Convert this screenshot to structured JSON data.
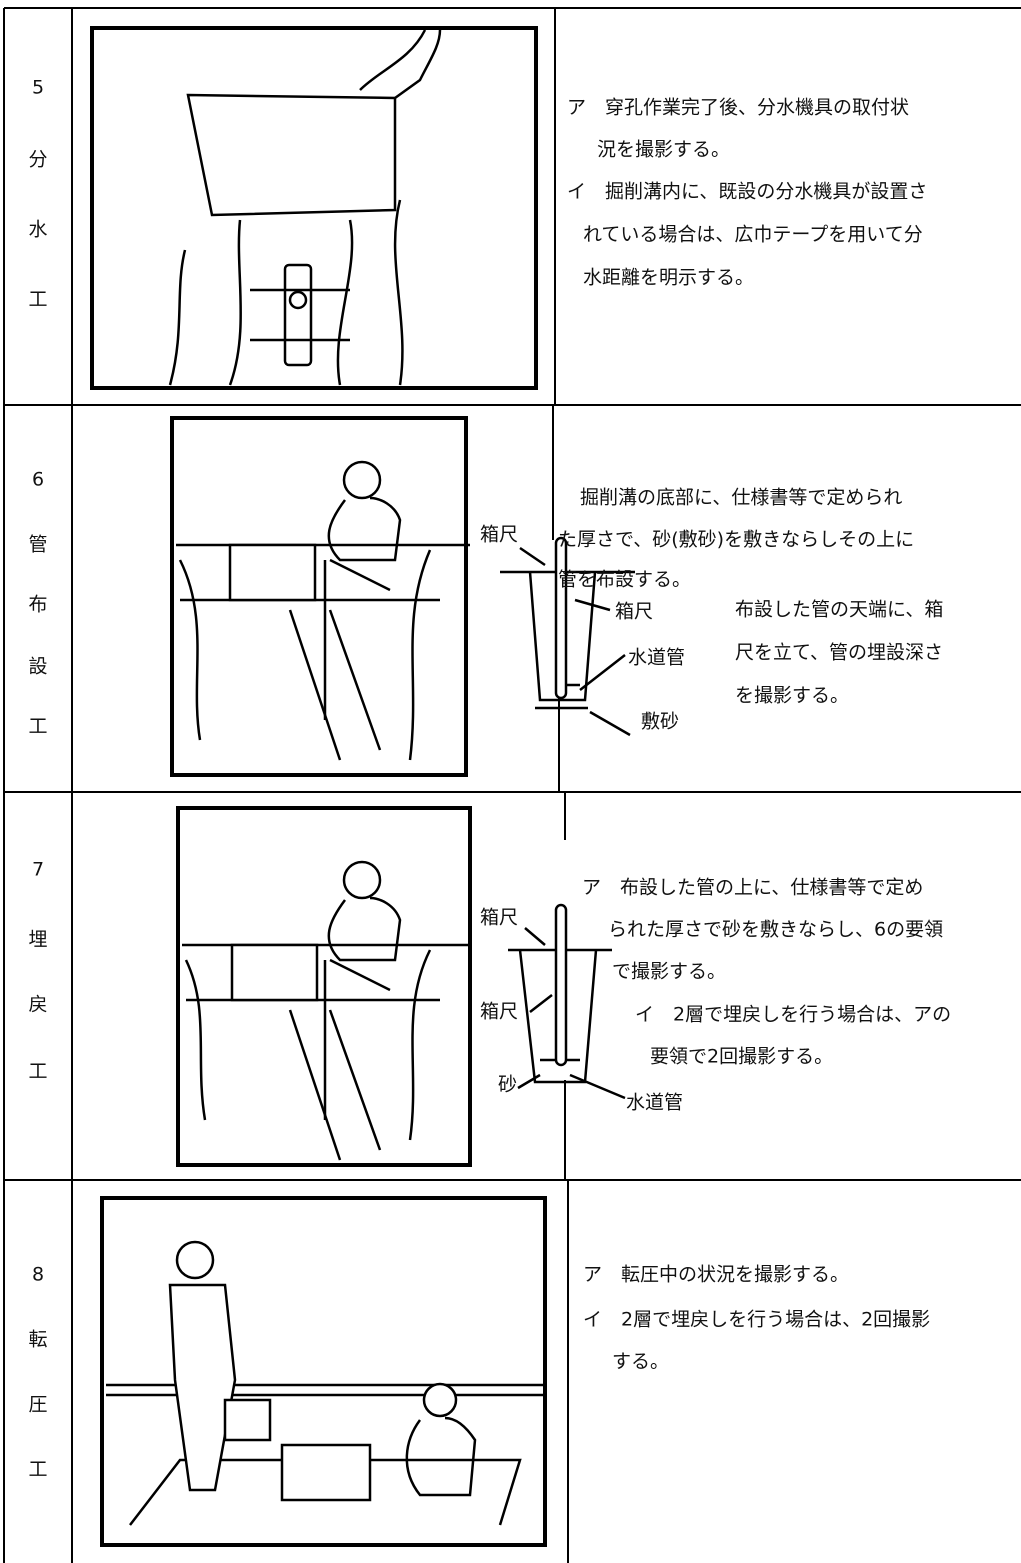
{
  "rows": [
    {
      "number": "5",
      "name": [
        "分",
        "水",
        "工"
      ],
      "lines": [
        "ア　穿孔作業完了後、分水機具の取付状",
        "況を撮影する。",
        "イ　掘削溝内に、既設の分水機具が設置さ",
        "れている場合は、広巾テープを用いて分",
        "水距離を明示する。"
      ]
    },
    {
      "number": "6",
      "name": [
        "管",
        "布",
        "設",
        "工"
      ],
      "lines": [
        "掘削溝の底部に、仕様書等で定められ",
        "た厚さで、砂(敷砂)を敷きならしその上に",
        "管を布設する。",
        "布設した管の天端に、箱",
        "尺を立て、管の埋設深さ",
        "を撮影する。"
      ],
      "labels": [
        "箱尺",
        "箱尺",
        "水道管",
        "敷砂"
      ]
    },
    {
      "number": "7",
      "name": [
        "埋",
        "戻",
        "工"
      ],
      "lines": [
        "ア　布設した管の上に、仕様書等で定め",
        "られた厚さで砂を敷きならし、6の要領",
        "で撮影する。",
        "イ　2層で埋戻しを行う場合は、アの",
        "要領で2回撮影する。"
      ],
      "labels": [
        "箱尺",
        "箱尺",
        "砂",
        "水道管"
      ]
    },
    {
      "number": "8",
      "name": [
        "転",
        "圧",
        "工"
      ],
      "lines": [
        "ア　転圧中の状況を撮影する。",
        "イ　2層で埋戻しを行う場合は、2回撮影",
        "する。"
      ]
    }
  ]
}
